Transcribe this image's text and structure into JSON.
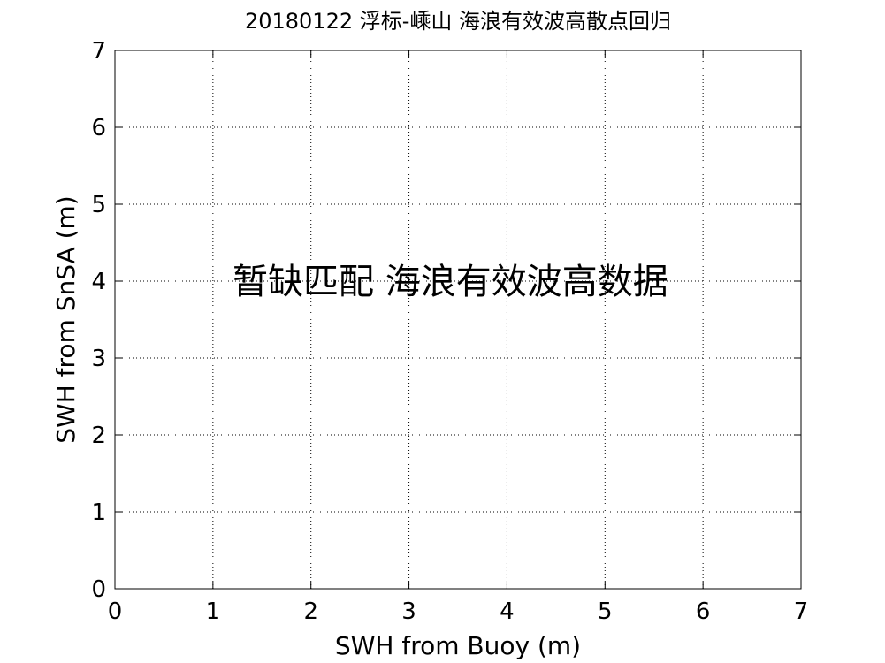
{
  "chart_data": {
    "type": "scatter",
    "title": "20180122 浮标-嵊山 海浪有效波高散点回归",
    "xlabel": "SWH from Buoy (m)",
    "ylabel": "SWH from SnSA (m)",
    "xlim": [
      0,
      7
    ],
    "ylim": [
      0,
      7
    ],
    "xticks": [
      "0",
      "1",
      "2",
      "3",
      "4",
      "5",
      "6",
      "7"
    ],
    "yticks": [
      "0",
      "1",
      "2",
      "3",
      "4",
      "5",
      "6",
      "7"
    ],
    "grid": true,
    "series": [],
    "annotation": {
      "text": "暂缺匹配 海浪有效波高数据",
      "x": 1.2,
      "y": 4
    }
  }
}
